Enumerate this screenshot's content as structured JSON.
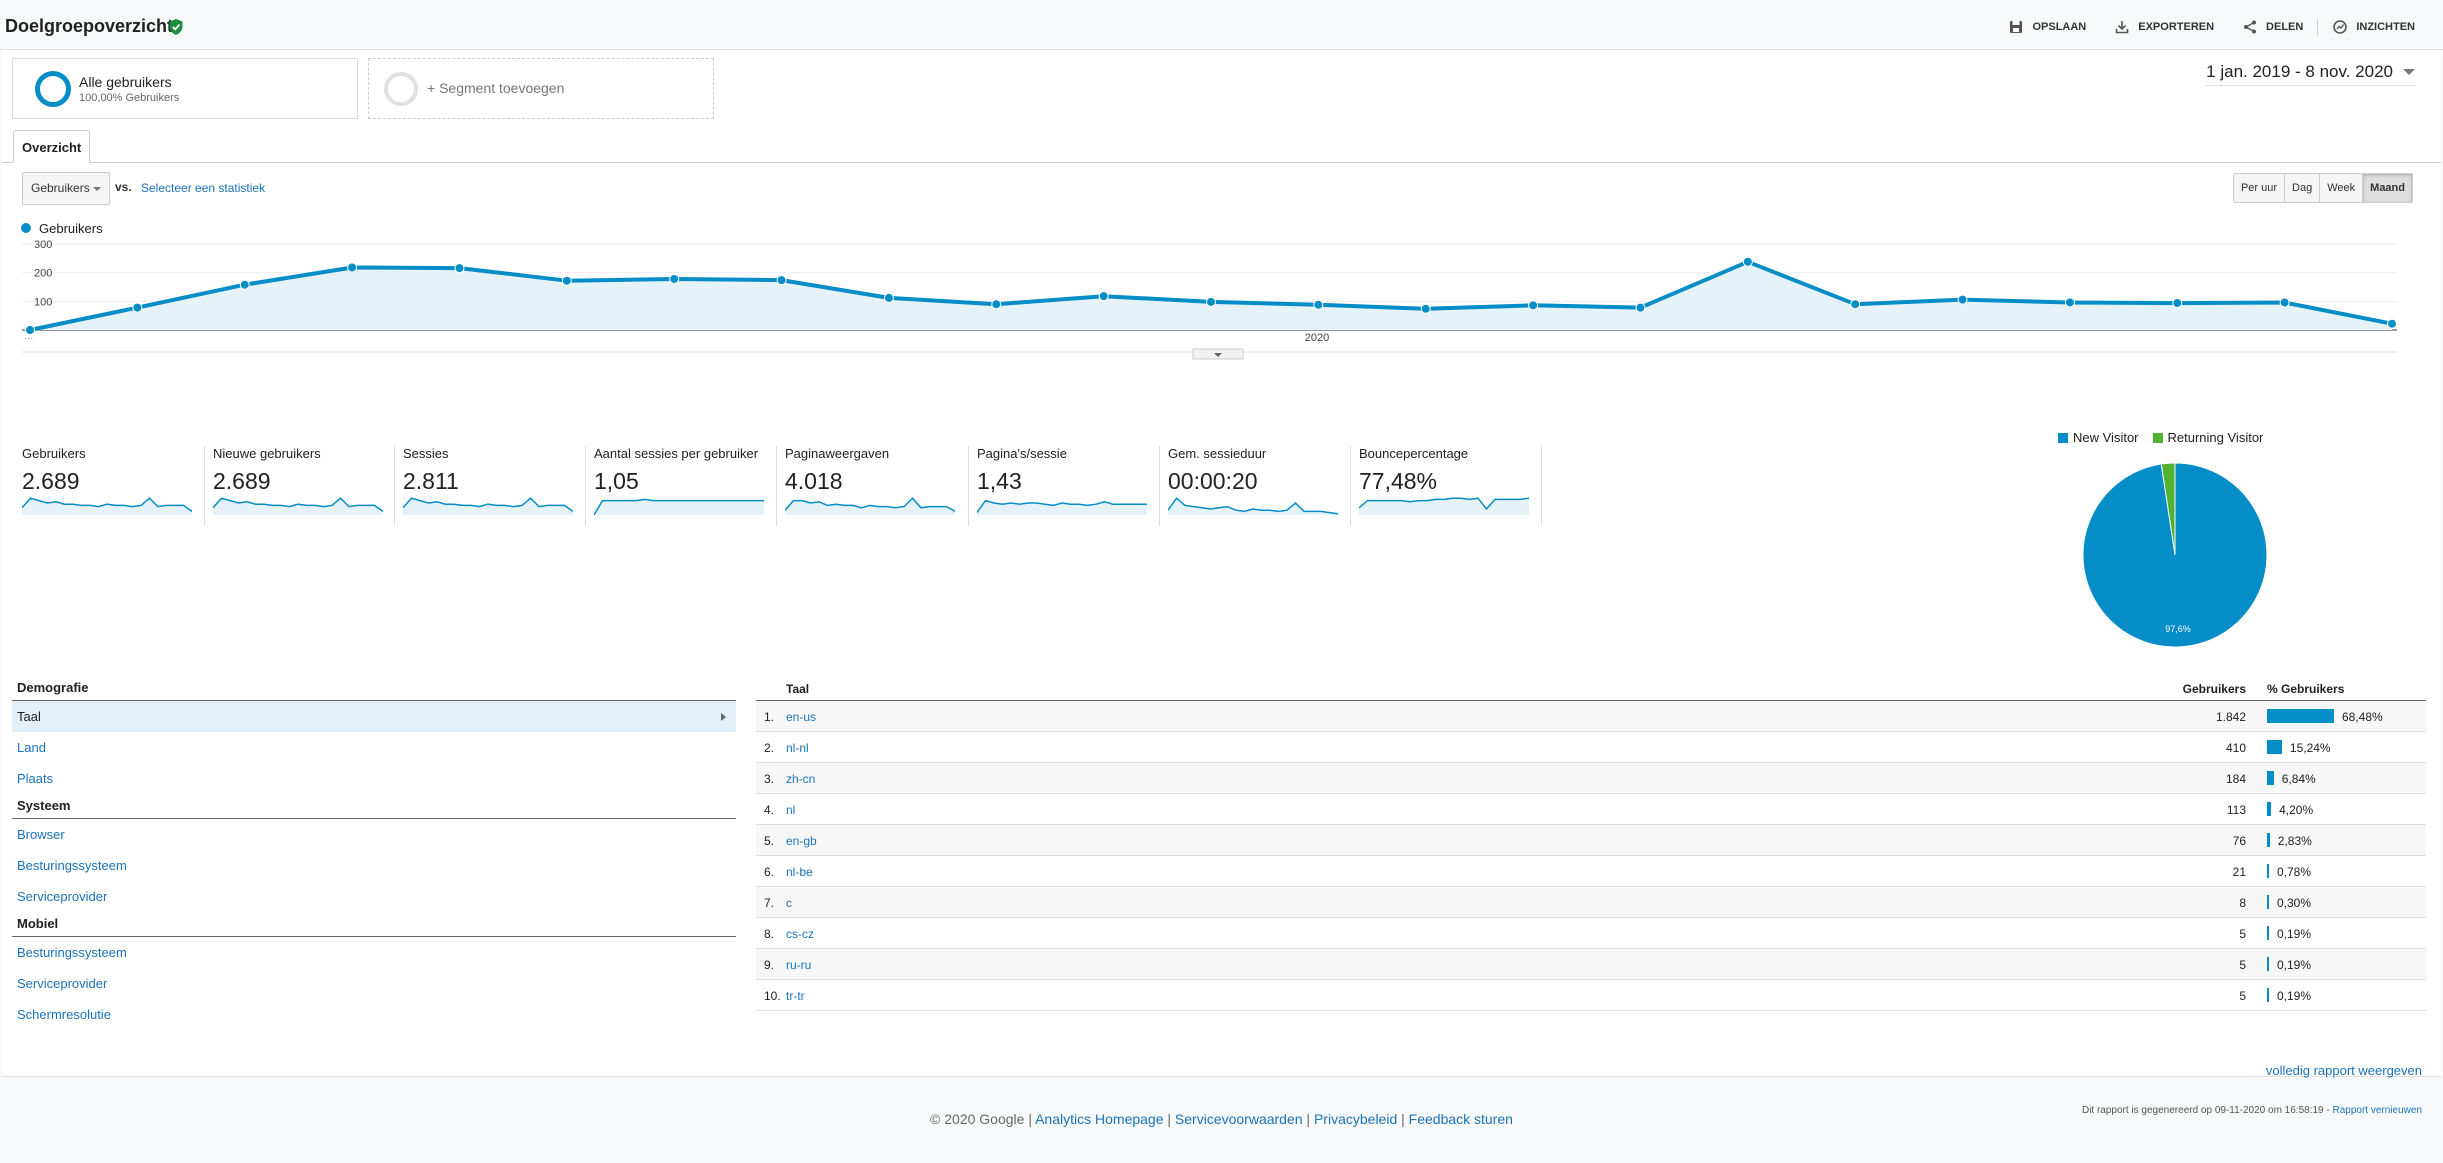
{
  "header": {
    "title": "Doelgroepoverzicht",
    "tools": [
      {
        "label": "OPSLAAN",
        "icon": "save-icon"
      },
      {
        "label": "EXPORTEREN",
        "icon": "download-icon"
      },
      {
        "label": "DELEN",
        "icon": "share-icon"
      },
      {
        "label": "INZICHTEN",
        "icon": "insights-icon"
      }
    ]
  },
  "segments": {
    "active_name": "Alle gebruikers",
    "active_sub": "100,00% Gebruikers",
    "add_label": "+ Segment toevoegen"
  },
  "date_range": "1 jan. 2019 - 8 nov. 2020",
  "tab": "Overzicht",
  "controls": {
    "metric": "Gebruikers",
    "vs": "vs.",
    "select_stat": "Selecteer een statistiek",
    "granularity": [
      "Per uur",
      "Dag",
      "Week",
      "Maand"
    ],
    "granularity_active": "Maand"
  },
  "colors": {
    "accent": "#058dc7",
    "returning": "#50b432",
    "link": "#1a73b8"
  },
  "chart_data": [
    {
      "type": "area",
      "series": [
        {
          "name": "Gebruikers",
          "values": [
            0,
            78,
            158,
            218,
            216,
            172,
            178,
            174,
            112,
            90,
            118,
            98,
            88,
            74,
            86,
            78,
            238,
            90,
            106,
            96,
            94,
            96,
            22
          ]
        }
      ],
      "ylim": [
        0,
        300
      ],
      "yticks": [
        "300",
        "200",
        "100"
      ],
      "x_tick_label": "2020",
      "x_start_label": "..."
    },
    {
      "type": "pie",
      "labels": [
        "New Visitor",
        "Returning Visitor"
      ],
      "values": [
        97.6,
        2.4
      ],
      "slice_label": "97,6%"
    }
  ],
  "scorecards": [
    {
      "label": "Gebruikers",
      "value": "2.689",
      "spark": [
        6,
        14,
        12,
        10,
        11,
        9,
        9,
        8,
        8,
        7,
        9,
        8,
        8,
        7,
        8,
        14,
        7,
        8,
        8,
        8,
        3
      ]
    },
    {
      "label": "Nieuwe gebruikers",
      "value": "2.689",
      "spark": [
        6,
        14,
        12,
        10,
        11,
        9,
        9,
        8,
        8,
        7,
        9,
        8,
        8,
        7,
        8,
        14,
        7,
        8,
        8,
        8,
        3
      ]
    },
    {
      "label": "Sessies",
      "value": "2.811",
      "spark": [
        6,
        14,
        12,
        10,
        11,
        9,
        9,
        8,
        8,
        7,
        9,
        8,
        8,
        7,
        8,
        14,
        7,
        8,
        8,
        8,
        3
      ]
    },
    {
      "label": "Aantal sessies per gebruiker",
      "value": "1,05",
      "spark": [
        0,
        12,
        12,
        12,
        12,
        12,
        13,
        12,
        12,
        12,
        12,
        12,
        12,
        12,
        12,
        12,
        12,
        12,
        12,
        12,
        12
      ]
    },
    {
      "label": "Paginaweergaven",
      "value": "4.018",
      "spark": [
        4,
        12,
        12,
        10,
        11,
        8,
        9,
        8,
        8,
        6,
        8,
        7,
        7,
        6,
        7,
        14,
        6,
        7,
        7,
        7,
        3
      ]
    },
    {
      "label": "Pagina's/sessie",
      "value": "1,43",
      "spark": [
        2,
        12,
        10,
        9,
        10,
        9,
        10,
        10,
        9,
        8,
        10,
        9,
        9,
        8,
        9,
        11,
        9,
        9,
        9,
        9,
        9
      ]
    },
    {
      "label": "Gem. sessieduur",
      "value": "00:00:20",
      "spark": [
        4,
        14,
        8,
        7,
        6,
        5,
        6,
        7,
        4,
        3,
        5,
        4,
        4,
        3,
        4,
        10,
        3,
        3,
        3,
        2,
        1
      ]
    },
    {
      "label": "Bouncepercentage",
      "value": "77,48%",
      "spark": [
        6,
        12,
        12,
        12,
        12,
        12,
        11,
        12,
        12,
        13,
        13,
        14,
        14,
        13,
        14,
        5,
        13,
        13,
        13,
        13,
        14
      ]
    }
  ],
  "legend": [
    "New Visitor",
    "Returning Visitor"
  ],
  "demographics": {
    "groups": [
      {
        "title": "Demografie",
        "items": [
          "Taal",
          "Land",
          "Plaats"
        ]
      },
      {
        "title": "Systeem",
        "items": [
          "Browser",
          "Besturingssysteem",
          "Serviceprovider"
        ]
      },
      {
        "title": "Mobiel",
        "items": [
          "Besturingssysteem",
          "Serviceprovider",
          "Schermresolutie"
        ]
      }
    ],
    "selected": "Taal"
  },
  "table": {
    "col_dim": "Taal",
    "col_users": "Gebruikers",
    "col_pct": "% Gebruikers",
    "rows": [
      {
        "rank": "1.",
        "lang": "en-us",
        "users": "1.842",
        "pct": "68,48%",
        "share": 68.48
      },
      {
        "rank": "2.",
        "lang": "nl-nl",
        "users": "410",
        "pct": "15,24%",
        "share": 15.24
      },
      {
        "rank": "3.",
        "lang": "zh-cn",
        "users": "184",
        "pct": "6,84%",
        "share": 6.84
      },
      {
        "rank": "4.",
        "lang": "nl",
        "users": "113",
        "pct": "4,20%",
        "share": 4.2
      },
      {
        "rank": "5.",
        "lang": "en-gb",
        "users": "76",
        "pct": "2,83%",
        "share": 2.83
      },
      {
        "rank": "6.",
        "lang": "nl-be",
        "users": "21",
        "pct": "0,78%",
        "share": 0.78
      },
      {
        "rank": "7.",
        "lang": "c",
        "users": "8",
        "pct": "0,30%",
        "share": 0.3
      },
      {
        "rank": "8.",
        "lang": "cs-cz",
        "users": "5",
        "pct": "0,19%",
        "share": 0.19
      },
      {
        "rank": "9.",
        "lang": "ru-ru",
        "users": "5",
        "pct": "0,19%",
        "share": 0.19
      },
      {
        "rank": "10.",
        "lang": "tr-tr",
        "users": "5",
        "pct": "0,19%",
        "share": 0.19
      }
    ],
    "full_report": "volledig rapport weergeven"
  },
  "generated": {
    "text": "Dit rapport is gegenereerd op 09-11-2020 om 16:58:19 - ",
    "refresh": "Rapport vernieuwen"
  },
  "footer": {
    "copyright": "© 2020 Google",
    "links": [
      "Analytics Homepage",
      "Servicevoorwaarden",
      "Privacybeleid",
      "Feedback sturen"
    ]
  }
}
